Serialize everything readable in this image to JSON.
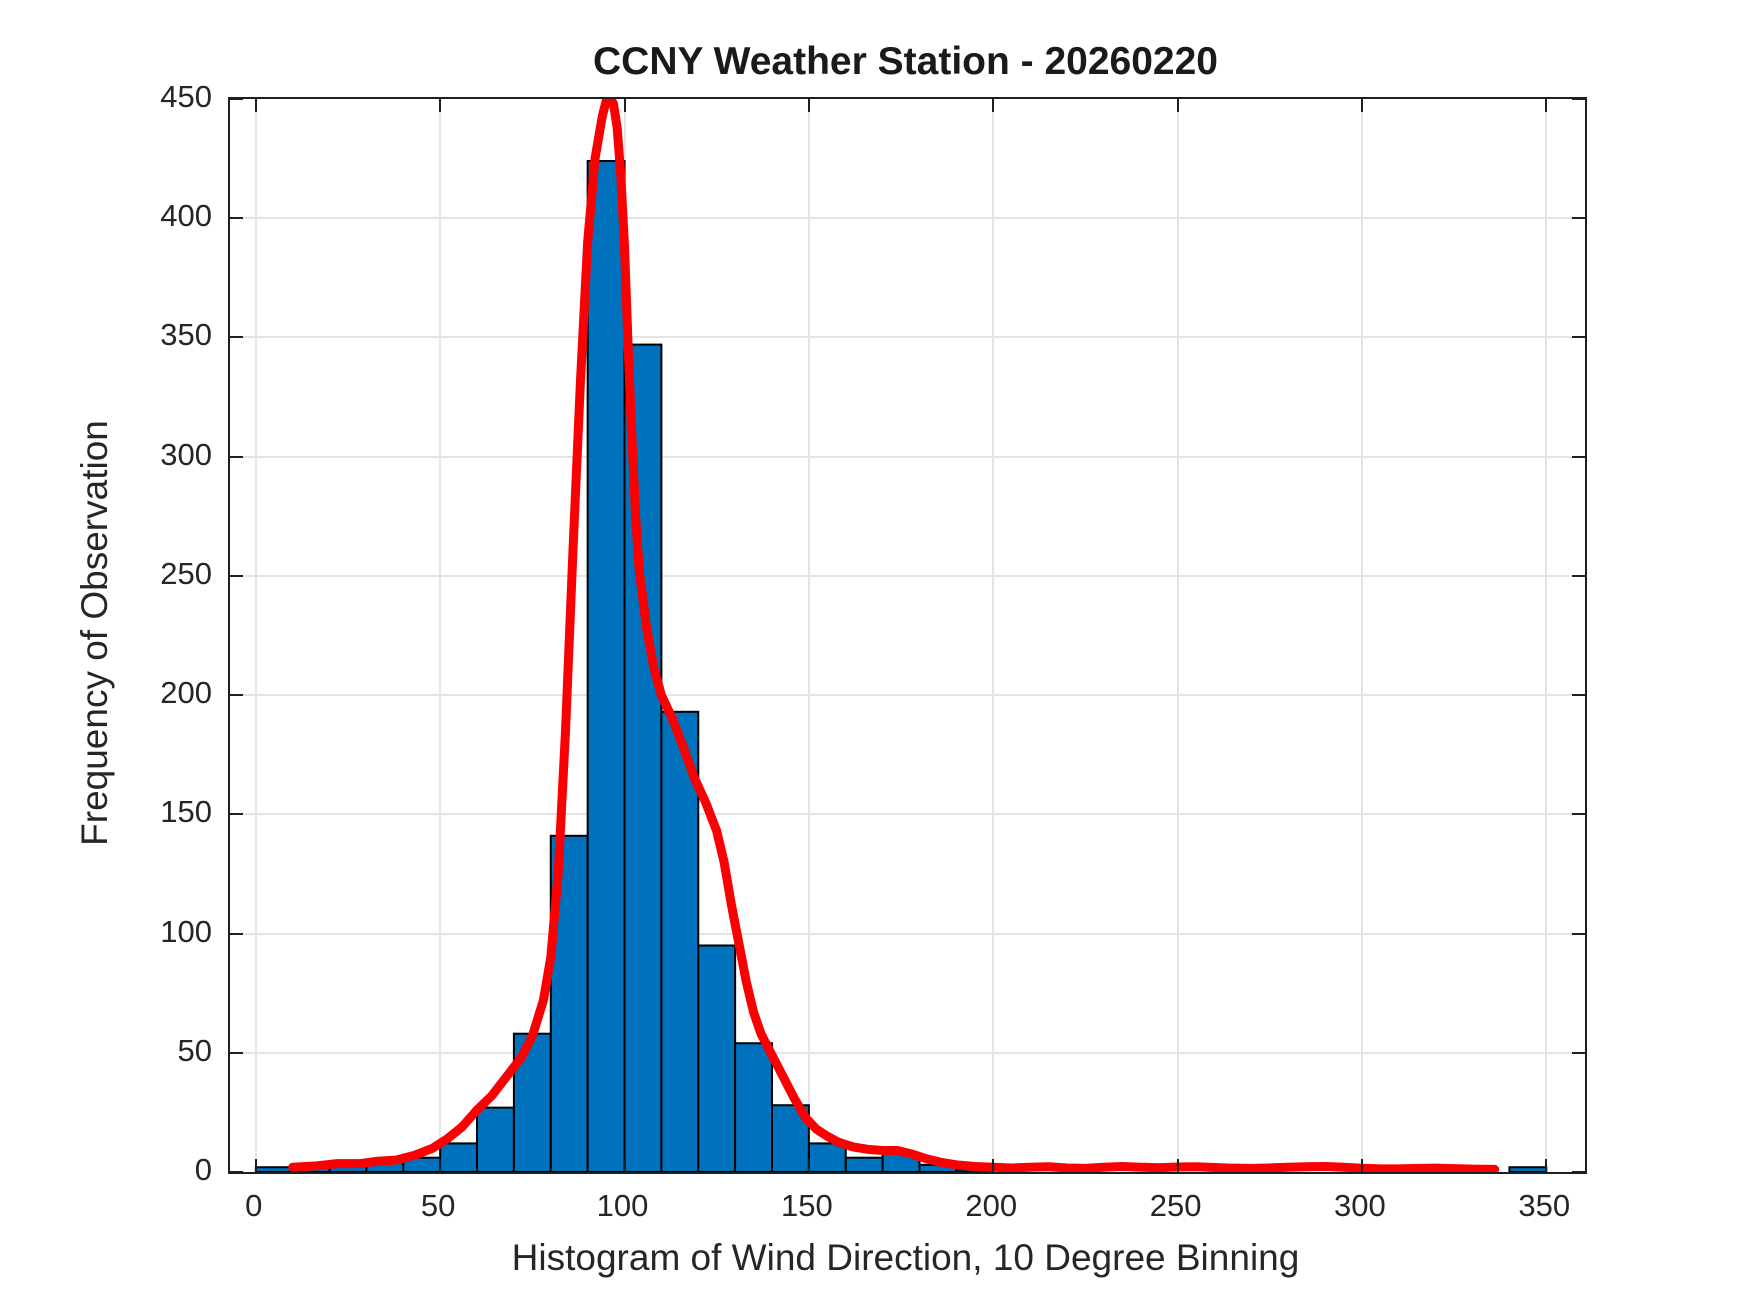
{
  "title": "CCNY Weather Station - 20260220",
  "x_axis": {
    "label": "Histogram of Wind Direction, 10 Degree Binning",
    "ticks": [
      0,
      50,
      100,
      150,
      200,
      250,
      300,
      350
    ],
    "min": -7,
    "max": 360.5
  },
  "y_axis": {
    "label": "Frequency of Observation",
    "ticks": [
      0,
      50,
      100,
      150,
      200,
      250,
      300,
      350,
      400,
      450
    ],
    "min": 0,
    "max": 450
  },
  "colors": {
    "bar_fill": "#0072BD",
    "bar_edge": "#000000",
    "curve": "#FA0000",
    "grid": "#E4E4E4",
    "axis_box": "#1F1F1F",
    "text": "#262626"
  },
  "chart_data": {
    "type": "bar",
    "subtype": "histogram-with-smoothed-curve",
    "title": "CCNY Weather Station - 20260220",
    "xlabel": "Histogram of Wind Direction, 10 Degree Binning",
    "ylabel": "Frequency of Observation",
    "xlim": [
      -7,
      360.5
    ],
    "ylim": [
      0,
      450
    ],
    "grid": true,
    "bin_width": 10,
    "bin_starts": [
      0,
      10,
      20,
      30,
      40,
      50,
      60,
      70,
      80,
      90,
      100,
      110,
      120,
      130,
      140,
      150,
      160,
      170,
      180,
      190,
      200,
      210,
      220,
      230,
      240,
      250,
      260,
      270,
      280,
      290,
      300,
      310,
      320,
      330,
      340,
      350
    ],
    "values": [
      2,
      2,
      3,
      4,
      6,
      12,
      27,
      58,
      141,
      424,
      347,
      193,
      95,
      54,
      28,
      12,
      6,
      8,
      3,
      1,
      0,
      0,
      0,
      0,
      0,
      0,
      0,
      0,
      0,
      0,
      0,
      0,
      0,
      0,
      2,
      0
    ],
    "line_series": {
      "name": "smoothed frequency curve",
      "color": "#FA0000",
      "points": [
        [
          10,
          2
        ],
        [
          16,
          2.5
        ],
        [
          22,
          3.5
        ],
        [
          28,
          3.5
        ],
        [
          33,
          4.5
        ],
        [
          38,
          5
        ],
        [
          43,
          7
        ],
        [
          48,
          10
        ],
        [
          52,
          14
        ],
        [
          56,
          19
        ],
        [
          60,
          26
        ],
        [
          64,
          32
        ],
        [
          68,
          40
        ],
        [
          72,
          48
        ],
        [
          75,
          57
        ],
        [
          78,
          72
        ],
        [
          80,
          90
        ],
        [
          82,
          125
        ],
        [
          84,
          185
        ],
        [
          86,
          260
        ],
        [
          88,
          330
        ],
        [
          90,
          390
        ],
        [
          92,
          425
        ],
        [
          94,
          443
        ],
        [
          95.5,
          452
        ],
        [
          97,
          448
        ],
        [
          98,
          438
        ],
        [
          99,
          418
        ],
        [
          100,
          388
        ],
        [
          101,
          345
        ],
        [
          102,
          308
        ],
        [
          103,
          275
        ],
        [
          104,
          252
        ],
        [
          106,
          228
        ],
        [
          108,
          211
        ],
        [
          110,
          200
        ],
        [
          113,
          190
        ],
        [
          116,
          178
        ],
        [
          119,
          165
        ],
        [
          122,
          155
        ],
        [
          125,
          143
        ],
        [
          127,
          130
        ],
        [
          129,
          112
        ],
        [
          131,
          96
        ],
        [
          133,
          80
        ],
        [
          135,
          67
        ],
        [
          137,
          58
        ],
        [
          140,
          49
        ],
        [
          143,
          40
        ],
        [
          146,
          31
        ],
        [
          149,
          23
        ],
        [
          152,
          18
        ],
        [
          155,
          15
        ],
        [
          158,
          12.5
        ],
        [
          162,
          10.5
        ],
        [
          166,
          9.5
        ],
        [
          170,
          9
        ],
        [
          174,
          9
        ],
        [
          178,
          7.5
        ],
        [
          182,
          5.5
        ],
        [
          186,
          4
        ],
        [
          190,
          3
        ],
        [
          195,
          2.3
        ],
        [
          200,
          2
        ],
        [
          205,
          1.7
        ],
        [
          210,
          2
        ],
        [
          215,
          2.2
        ],
        [
          220,
          1.7
        ],
        [
          225,
          1.5
        ],
        [
          230,
          2
        ],
        [
          235,
          2.3
        ],
        [
          240,
          2
        ],
        [
          245,
          1.8
        ],
        [
          250,
          2.1
        ],
        [
          255,
          2.2
        ],
        [
          260,
          1.9
        ],
        [
          265,
          1.6
        ],
        [
          270,
          1.5
        ],
        [
          275,
          1.7
        ],
        [
          280,
          2
        ],
        [
          285,
          2.2
        ],
        [
          290,
          2.3
        ],
        [
          295,
          2
        ],
        [
          300,
          1.6
        ],
        [
          305,
          1.3
        ],
        [
          310,
          1.3
        ],
        [
          315,
          1.5
        ],
        [
          320,
          1.6
        ],
        [
          325,
          1.4
        ],
        [
          330,
          1.2
        ],
        [
          336,
          1.1
        ]
      ]
    }
  }
}
